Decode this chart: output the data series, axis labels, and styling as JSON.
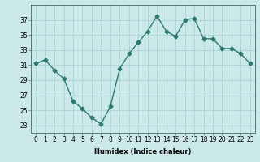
{
  "x": [
    0,
    1,
    2,
    3,
    4,
    5,
    6,
    7,
    8,
    9,
    10,
    11,
    12,
    13,
    14,
    15,
    16,
    17,
    18,
    19,
    20,
    21,
    22,
    23
  ],
  "y": [
    31.2,
    31.7,
    30.3,
    29.2,
    26.2,
    25.2,
    24.0,
    23.2,
    25.5,
    30.5,
    32.5,
    34.0,
    35.5,
    37.5,
    35.5,
    34.8,
    37.0,
    37.2,
    34.5,
    34.5,
    33.2,
    33.2,
    32.5,
    31.2
  ],
  "line_color": "#2a7a6e",
  "marker": "D",
  "markersize": 2.5,
  "linewidth": 1.0,
  "bg_color": "#cce9e9",
  "grid_color": "#aad4d4",
  "xlabel": "Humidex (Indice chaleur)",
  "ylim": [
    22,
    39
  ],
  "xlim": [
    -0.5,
    23.5
  ],
  "yticks": [
    23,
    25,
    27,
    29,
    31,
    33,
    35,
    37
  ],
  "xticks": [
    0,
    1,
    2,
    3,
    4,
    5,
    6,
    7,
    8,
    9,
    10,
    11,
    12,
    13,
    14,
    15,
    16,
    17,
    18,
    19,
    20,
    21,
    22,
    23
  ],
  "label_fontsize": 6,
  "tick_fontsize": 5.5
}
